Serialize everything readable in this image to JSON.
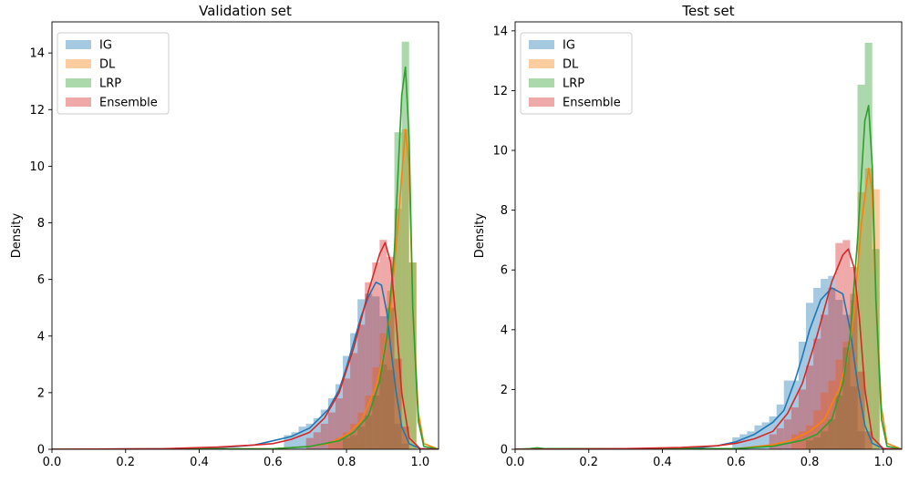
{
  "chart_data": [
    {
      "type": "histogram",
      "title": "Validation set",
      "xlabel": "",
      "ylabel": "Density",
      "xlim": [
        0.0,
        1.05
      ],
      "ylim": [
        0,
        15.1
      ],
      "xticks": [
        "0.0",
        "0.2",
        "0.4",
        "0.6",
        "0.8",
        "1.0"
      ],
      "yticks": [
        "0",
        "2",
        "4",
        "6",
        "8",
        "10",
        "12",
        "14"
      ],
      "legend_position": "top-left",
      "series": [
        {
          "name": "IG",
          "color": "#1f77b4",
          "bars": [
            [
              0.64,
              0.5
            ],
            [
              0.66,
              0.6
            ],
            [
              0.68,
              0.8
            ],
            [
              0.7,
              0.9
            ],
            [
              0.72,
              1.1
            ],
            [
              0.74,
              1.4
            ],
            [
              0.76,
              1.8
            ],
            [
              0.78,
              2.3
            ],
            [
              0.8,
              3.3
            ],
            [
              0.82,
              4.1
            ],
            [
              0.84,
              5.3
            ],
            [
              0.86,
              5.5
            ],
            [
              0.88,
              5.4
            ],
            [
              0.9,
              4.7
            ],
            [
              0.92,
              2.8
            ],
            [
              0.94,
              0.9
            ],
            [
              0.96,
              0.2
            ]
          ],
          "kde": [
            [
              0.0,
              0.0
            ],
            [
              0.4,
              0.02
            ],
            [
              0.5,
              0.1
            ],
            [
              0.55,
              0.15
            ],
            [
              0.6,
              0.3
            ],
            [
              0.65,
              0.45
            ],
            [
              0.7,
              0.75
            ],
            [
              0.75,
              1.4
            ],
            [
              0.78,
              2.1
            ],
            [
              0.8,
              2.9
            ],
            [
              0.82,
              3.8
            ],
            [
              0.84,
              4.7
            ],
            [
              0.86,
              5.4
            ],
            [
              0.88,
              5.9
            ],
            [
              0.895,
              5.8
            ],
            [
              0.91,
              4.8
            ],
            [
              0.92,
              3.6
            ],
            [
              0.935,
              2.0
            ],
            [
              0.95,
              0.8
            ],
            [
              0.97,
              0.2
            ],
            [
              1.0,
              0.02
            ],
            [
              1.05,
              0.0
            ]
          ]
        },
        {
          "name": "DL",
          "color": "#ff7f0e",
          "bars": [
            [
              0.76,
              0.3
            ],
            [
              0.78,
              0.4
            ],
            [
              0.8,
              0.6
            ],
            [
              0.82,
              0.9
            ],
            [
              0.84,
              1.3
            ],
            [
              0.86,
              1.9
            ],
            [
              0.88,
              2.9
            ],
            [
              0.9,
              4.1
            ],
            [
              0.92,
              5.6
            ],
            [
              0.94,
              8.5
            ],
            [
              0.96,
              11.3
            ],
            [
              0.98,
              6.6
            ]
          ],
          "kde": [
            [
              0.0,
              0.0
            ],
            [
              0.6,
              0.02
            ],
            [
              0.7,
              0.1
            ],
            [
              0.75,
              0.2
            ],
            [
              0.8,
              0.5
            ],
            [
              0.84,
              1.0
            ],
            [
              0.88,
              2.2
            ],
            [
              0.9,
              3.3
            ],
            [
              0.92,
              5.0
            ],
            [
              0.94,
              8.0
            ],
            [
              0.96,
              11.3
            ],
            [
              0.97,
              10.0
            ],
            [
              0.98,
              5.0
            ],
            [
              0.995,
              1.3
            ],
            [
              1.01,
              0.2
            ],
            [
              1.05,
              0.0
            ]
          ]
        },
        {
          "name": "LRP",
          "color": "#2ca02c",
          "bars": [
            [
              0.8,
              0.4
            ],
            [
              0.82,
              0.5
            ],
            [
              0.84,
              0.8
            ],
            [
              0.86,
              1.2
            ],
            [
              0.88,
              1.9
            ],
            [
              0.9,
              3.0
            ],
            [
              0.92,
              5.0
            ],
            [
              0.94,
              11.2
            ],
            [
              0.96,
              14.4
            ],
            [
              0.98,
              6.6
            ]
          ],
          "kde": [
            [
              0.0,
              0.0
            ],
            [
              0.6,
              0.02
            ],
            [
              0.7,
              0.1
            ],
            [
              0.78,
              0.3
            ],
            [
              0.82,
              0.6
            ],
            [
              0.86,
              1.2
            ],
            [
              0.89,
              2.4
            ],
            [
              0.91,
              4.0
            ],
            [
              0.93,
              7.0
            ],
            [
              0.95,
              12.5
            ],
            [
              0.96,
              13.5
            ],
            [
              0.97,
              11.0
            ],
            [
              0.98,
              5.0
            ],
            [
              0.995,
              1.0
            ],
            [
              1.01,
              0.1
            ],
            [
              1.05,
              0.0
            ]
          ]
        },
        {
          "name": "Ensemble",
          "color": "#d62728",
          "bars": [
            [
              0.7,
              0.4
            ],
            [
              0.72,
              0.6
            ],
            [
              0.74,
              0.9
            ],
            [
              0.76,
              1.3
            ],
            [
              0.78,
              1.8
            ],
            [
              0.8,
              2.5
            ],
            [
              0.82,
              3.4
            ],
            [
              0.84,
              4.4
            ],
            [
              0.86,
              5.9
            ],
            [
              0.88,
              6.6
            ],
            [
              0.9,
              7.4
            ],
            [
              0.92,
              6.8
            ],
            [
              0.94,
              3.2
            ],
            [
              0.96,
              0.8
            ]
          ],
          "kde": [
            [
              0.0,
              0.0
            ],
            [
              0.3,
              0.02
            ],
            [
              0.45,
              0.08
            ],
            [
              0.55,
              0.15
            ],
            [
              0.6,
              0.2
            ],
            [
              0.65,
              0.35
            ],
            [
              0.7,
              0.6
            ],
            [
              0.74,
              1.1
            ],
            [
              0.78,
              2.0
            ],
            [
              0.82,
              3.6
            ],
            [
              0.86,
              5.6
            ],
            [
              0.89,
              6.9
            ],
            [
              0.905,
              7.3
            ],
            [
              0.92,
              6.6
            ],
            [
              0.935,
              4.5
            ],
            [
              0.95,
              2.0
            ],
            [
              0.97,
              0.4
            ],
            [
              1.0,
              0.02
            ],
            [
              1.05,
              0.0
            ]
          ]
        }
      ]
    },
    {
      "type": "histogram",
      "title": "Test set",
      "xlabel": "",
      "ylabel": "Density",
      "xlim": [
        0.0,
        1.05
      ],
      "ylim": [
        0,
        14.3
      ],
      "xticks": [
        "0.0",
        "0.2",
        "0.4",
        "0.6",
        "0.8",
        "1.0"
      ],
      "yticks": [
        "0",
        "2",
        "4",
        "6",
        "8",
        "10",
        "12",
        "14"
      ],
      "legend_position": "top-left",
      "series": [
        {
          "name": "IG",
          "color": "#1f77b4",
          "bars": [
            [
              0.6,
              0.4
            ],
            [
              0.62,
              0.5
            ],
            [
              0.64,
              0.6
            ],
            [
              0.66,
              0.8
            ],
            [
              0.68,
              0.9
            ],
            [
              0.7,
              1.1
            ],
            [
              0.72,
              1.5
            ],
            [
              0.74,
              2.3
            ],
            [
              0.76,
              2.3
            ],
            [
              0.78,
              3.6
            ],
            [
              0.8,
              4.9
            ],
            [
              0.82,
              5.4
            ],
            [
              0.84,
              5.7
            ],
            [
              0.86,
              5.8
            ],
            [
              0.88,
              5.0
            ],
            [
              0.9,
              4.5
            ],
            [
              0.92,
              2.1
            ],
            [
              0.94,
              0.6
            ]
          ],
          "kde": [
            [
              0.0,
              0.0
            ],
            [
              0.4,
              0.02
            ],
            [
              0.5,
              0.06
            ],
            [
              0.55,
              0.12
            ],
            [
              0.6,
              0.25
            ],
            [
              0.65,
              0.5
            ],
            [
              0.7,
              0.9
            ],
            [
              0.73,
              1.3
            ],
            [
              0.76,
              2.3
            ],
            [
              0.78,
              3.1
            ],
            [
              0.8,
              4.0
            ],
            [
              0.83,
              5.0
            ],
            [
              0.86,
              5.4
            ],
            [
              0.89,
              5.2
            ],
            [
              0.91,
              4.0
            ],
            [
              0.93,
              2.2
            ],
            [
              0.95,
              0.8
            ],
            [
              0.97,
              0.2
            ],
            [
              1.0,
              0.02
            ],
            [
              1.05,
              0.0
            ]
          ]
        },
        {
          "name": "DL",
          "color": "#ff7f0e",
          "bars": [
            [
              0.76,
              0.5
            ],
            [
              0.78,
              0.6
            ],
            [
              0.8,
              0.8
            ],
            [
              0.82,
              1.3
            ],
            [
              0.84,
              1.9
            ],
            [
              0.86,
              2.3
            ],
            [
              0.88,
              3.0
            ],
            [
              0.9,
              3.6
            ],
            [
              0.92,
              5.0
            ],
            [
              0.94,
              8.6
            ],
            [
              0.96,
              9.4
            ],
            [
              0.98,
              8.7
            ]
          ],
          "kde": [
            [
              0.0,
              0.0
            ],
            [
              0.6,
              0.02
            ],
            [
              0.7,
              0.15
            ],
            [
              0.75,
              0.3
            ],
            [
              0.8,
              0.6
            ],
            [
              0.84,
              1.0
            ],
            [
              0.88,
              2.0
            ],
            [
              0.9,
              2.9
            ],
            [
              0.92,
              4.5
            ],
            [
              0.94,
              7.5
            ],
            [
              0.96,
              9.4
            ],
            [
              0.97,
              8.6
            ],
            [
              0.98,
              5.0
            ],
            [
              0.995,
              1.4
            ],
            [
              1.01,
              0.2
            ],
            [
              1.05,
              0.0
            ]
          ]
        },
        {
          "name": "LRP",
          "color": "#2ca02c",
          "bars": [
            [
              0.8,
              0.3
            ],
            [
              0.82,
              0.4
            ],
            [
              0.84,
              0.6
            ],
            [
              0.86,
              1.0
            ],
            [
              0.88,
              1.8
            ],
            [
              0.9,
              3.4
            ],
            [
              0.92,
              5.2
            ],
            [
              0.94,
              12.2
            ],
            [
              0.96,
              13.6
            ],
            [
              0.98,
              6.7
            ]
          ],
          "kde": [
            [
              0.0,
              0.0
            ],
            [
              0.04,
              0.02
            ],
            [
              0.06,
              0.05
            ],
            [
              0.08,
              0.02
            ],
            [
              0.6,
              0.02
            ],
            [
              0.7,
              0.1
            ],
            [
              0.78,
              0.3
            ],
            [
              0.82,
              0.5
            ],
            [
              0.86,
              1.0
            ],
            [
              0.89,
              2.2
            ],
            [
              0.91,
              3.8
            ],
            [
              0.93,
              7.0
            ],
            [
              0.95,
              11.0
            ],
            [
              0.96,
              11.5
            ],
            [
              0.97,
              9.5
            ],
            [
              0.98,
              5.0
            ],
            [
              0.995,
              1.0
            ],
            [
              1.01,
              0.1
            ],
            [
              1.05,
              0.0
            ]
          ]
        },
        {
          "name": "Ensemble",
          "color": "#d62728",
          "bars": [
            [
              0.7,
              0.5
            ],
            [
              0.72,
              0.7
            ],
            [
              0.74,
              1.0
            ],
            [
              0.76,
              1.4
            ],
            [
              0.78,
              2.0
            ],
            [
              0.8,
              2.8
            ],
            [
              0.82,
              3.7
            ],
            [
              0.84,
              4.5
            ],
            [
              0.86,
              5.4
            ],
            [
              0.88,
              6.9
            ],
            [
              0.9,
              7.0
            ],
            [
              0.92,
              6.1
            ],
            [
              0.94,
              2.6
            ],
            [
              0.96,
              0.6
            ]
          ],
          "kde": [
            [
              0.0,
              0.0
            ],
            [
              0.3,
              0.02
            ],
            [
              0.45,
              0.06
            ],
            [
              0.55,
              0.12
            ],
            [
              0.6,
              0.2
            ],
            [
              0.65,
              0.35
            ],
            [
              0.7,
              0.6
            ],
            [
              0.74,
              1.2
            ],
            [
              0.78,
              2.2
            ],
            [
              0.82,
              3.8
            ],
            [
              0.86,
              5.6
            ],
            [
              0.89,
              6.5
            ],
            [
              0.905,
              6.7
            ],
            [
              0.92,
              6.1
            ],
            [
              0.935,
              4.4
            ],
            [
              0.95,
              2.0
            ],
            [
              0.97,
              0.4
            ],
            [
              1.0,
              0.02
            ],
            [
              1.05,
              0.0
            ]
          ]
        }
      ]
    }
  ]
}
